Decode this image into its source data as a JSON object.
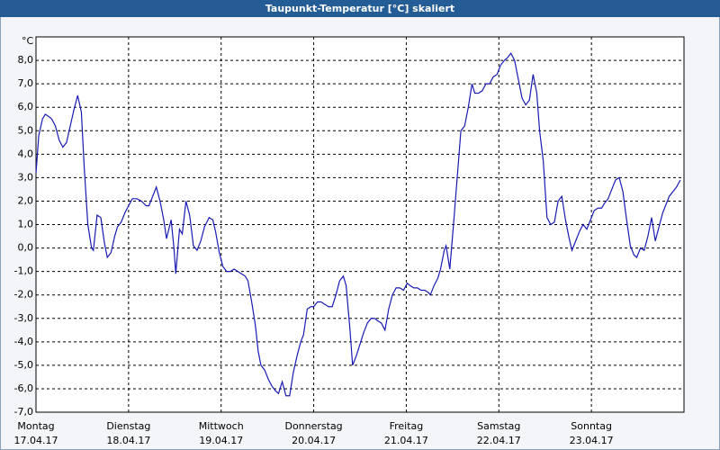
{
  "chart_data": {
    "type": "line",
    "title": "Taupunkt-Temperatur [°C] skaliert",
    "y_unit": "°C",
    "color": "#1a1ab4",
    "grid": true,
    "xlim": [
      0,
      7
    ],
    "xticks": [
      {
        "value": 0,
        "label": "Montag",
        "sublabel": "17.04.17"
      },
      {
        "value": 1,
        "label": "Dienstag",
        "sublabel": "18.04.17"
      },
      {
        "value": 2,
        "label": "Mittwoch",
        "sublabel": "19.04.17"
      },
      {
        "value": 3,
        "label": "Donnerstag",
        "sublabel": "20.04.17"
      },
      {
        "value": 4,
        "label": "Freitag",
        "sublabel": "21.04.17"
      },
      {
        "value": 5,
        "label": "Samstag",
        "sublabel": "22.04.17"
      },
      {
        "value": 6,
        "label": "Sonntag",
        "sublabel": "23.04.17"
      }
    ],
    "ylim": [
      -7,
      9
    ],
    "yticks": [
      {
        "value": -7,
        "label": "-7,0"
      },
      {
        "value": -6,
        "label": "-6,0"
      },
      {
        "value": -5,
        "label": "-5,0"
      },
      {
        "value": -4,
        "label": "-4,0"
      },
      {
        "value": -3,
        "label": "-3,0"
      },
      {
        "value": -2,
        "label": "-2,0"
      },
      {
        "value": -1,
        "label": "-1,0"
      },
      {
        "value": 0,
        "label": "0,0"
      },
      {
        "value": 1,
        "label": "1,0"
      },
      {
        "value": 2,
        "label": "2,0"
      },
      {
        "value": 3,
        "label": "3,0"
      },
      {
        "value": 4,
        "label": "4,0"
      },
      {
        "value": 5,
        "label": "5,0"
      },
      {
        "value": 6,
        "label": "6,0"
      },
      {
        "value": 7,
        "label": "7,0"
      },
      {
        "value": 8,
        "label": "8,0"
      }
    ],
    "x": [
      0,
      0.03,
      0.07,
      0.1,
      0.14,
      0.17,
      0.21,
      0.25,
      0.29,
      0.33,
      0.37,
      0.41,
      0.45,
      0.49,
      0.52,
      0.56,
      0.6,
      0.62,
      0.66,
      0.7,
      0.74,
      0.77,
      0.81,
      0.85,
      0.88,
      0.92,
      0.96,
      1.0,
      1.04,
      1.09,
      1.14,
      1.19,
      1.22,
      1.26,
      1.3,
      1.34,
      1.38,
      1.41,
      1.46,
      1.49,
      1.51,
      1.55,
      1.58,
      1.62,
      1.66,
      1.7,
      1.74,
      1.78,
      1.82,
      1.87,
      1.91,
      1.94,
      1.98,
      2.02,
      2.06,
      2.1,
      2.14,
      2.18,
      2.22,
      2.26,
      2.29,
      2.33,
      2.37,
      2.4,
      2.43,
      2.47,
      2.51,
      2.55,
      2.59,
      2.62,
      2.66,
      2.7,
      2.74,
      2.78,
      2.82,
      2.86,
      2.89,
      2.93,
      2.97,
      3.0,
      3.04,
      3.08,
      3.12,
      3.16,
      3.2,
      3.24,
      3.28,
      3.32,
      3.35,
      3.39,
      3.42,
      3.46,
      3.5,
      3.54,
      3.58,
      3.62,
      3.66,
      3.69,
      3.73,
      3.77,
      3.81,
      3.85,
      3.89,
      3.93,
      3.97,
      4.01,
      4.04,
      4.08,
      4.12,
      4.16,
      4.2,
      4.24,
      4.26,
      4.3,
      4.34,
      4.37,
      4.41,
      4.43,
      4.47,
      4.51,
      4.55,
      4.59,
      4.63,
      4.67,
      4.71,
      4.74,
      4.78,
      4.82,
      4.86,
      4.9,
      4.94,
      4.98,
      5.02,
      5.06,
      5.09,
      5.13,
      5.17,
      5.21,
      5.25,
      5.29,
      5.33,
      5.37,
      5.41,
      5.44,
      5.48,
      5.52,
      5.56,
      5.6,
      5.64,
      5.68,
      5.72,
      5.76,
      5.79,
      5.83,
      5.87,
      5.91,
      5.95,
      5.99,
      6.03,
      6.07,
      6.11,
      6.14,
      6.18,
      6.22,
      6.26,
      6.3,
      6.34,
      6.38,
      6.42,
      6.46,
      6.49,
      6.53,
      6.57,
      6.61,
      6.65,
      6.69,
      6.73,
      6.77,
      6.81,
      6.84,
      6.88,
      6.92,
      6.96
    ],
    "values": [
      3.2,
      4.8,
      5.5,
      5.7,
      5.6,
      5.5,
      5.2,
      4.6,
      4.3,
      4.5,
      5.2,
      5.9,
      6.5,
      5.8,
      3.5,
      1.0,
      0.0,
      -0.1,
      1.4,
      1.3,
      0.2,
      -0.4,
      -0.2,
      0.5,
      0.9,
      1.1,
      1.5,
      1.8,
      2.1,
      2.1,
      2.0,
      1.8,
      1.8,
      2.2,
      2.6,
      2.0,
      1.2,
      0.4,
      1.2,
      0.0,
      -1.1,
      0.8,
      0.6,
      2.0,
      1.4,
      0.1,
      -0.1,
      0.3,
      0.9,
      1.3,
      1.2,
      0.7,
      -0.2,
      -0.8,
      -1.0,
      -1.0,
      -0.9,
      -1.0,
      -1.1,
      -1.2,
      -1.4,
      -2.3,
      -3.3,
      -4.4,
      -5.0,
      -5.2,
      -5.6,
      -5.9,
      -6.1,
      -6.2,
      -5.7,
      -6.3,
      -6.3,
      -5.3,
      -4.6,
      -4.0,
      -3.7,
      -2.6,
      -2.5,
      -2.5,
      -2.3,
      -2.3,
      -2.4,
      -2.5,
      -2.5,
      -2.0,
      -1.4,
      -1.2,
      -1.6,
      -3.4,
      -5.0,
      -4.6,
      -4.1,
      -3.6,
      -3.2,
      -3.0,
      -3.0,
      -3.1,
      -3.2,
      -3.5,
      -2.6,
      -2.0,
      -1.7,
      -1.7,
      -1.8,
      -1.5,
      -1.6,
      -1.7,
      -1.7,
      -1.8,
      -1.8,
      -1.9,
      -2.0,
      -1.6,
      -1.3,
      -0.9,
      -0.1,
      0.1,
      -0.9,
      1.0,
      3.0,
      5.0,
      5.2,
      6.0,
      7.0,
      6.6,
      6.6,
      6.7,
      7.0,
      7.0,
      7.3,
      7.4,
      7.8,
      8.0,
      8.1,
      8.3,
      8.0,
      7.2,
      6.4,
      6.1,
      6.3,
      7.4,
      6.6,
      5.0,
      3.7,
      1.3,
      1.0,
      1.1,
      2.0,
      2.2,
      1.2,
      0.4,
      -0.1,
      0.3,
      0.7,
      1.0,
      0.8,
      1.2,
      1.6,
      1.7,
      1.7,
      1.9,
      2.1,
      2.5,
      2.9,
      3.0,
      2.4,
      1.2,
      0.1,
      -0.3,
      -0.4,
      0.0,
      -0.1,
      0.5,
      1.3,
      0.3,
      0.9,
      1.5,
      1.9,
      2.2,
      2.4,
      2.6,
      2.9
    ]
  }
}
